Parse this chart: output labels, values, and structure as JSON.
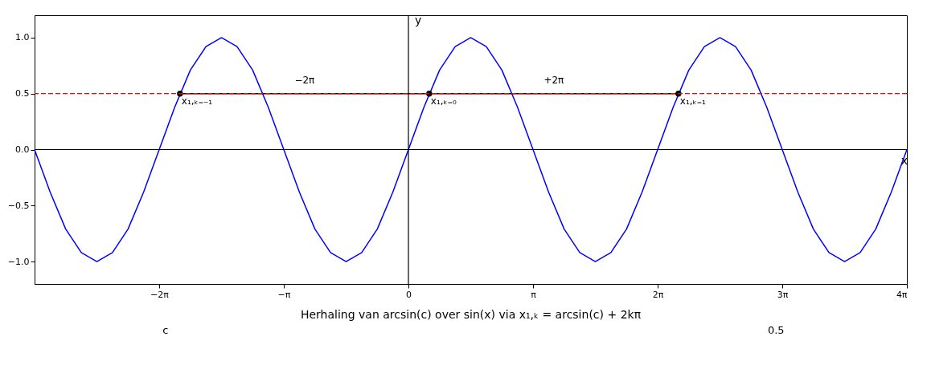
{
  "chart_data": [
    {
      "type": "line",
      "title": "Herhaling van arcsin(c) over sin(x) via x₁,ₖ = arcsin(c) + 2kπ",
      "xlabel": "x",
      "ylabel": "y",
      "xlim": [
        -9.4248,
        12.5664
      ],
      "ylim": [
        -1.2,
        1.2
      ],
      "xticks": [
        {
          "value": -6.2832,
          "label": "−2π"
        },
        {
          "value": -3.1416,
          "label": "−π"
        },
        0,
        {
          "value": 3.1416,
          "label": "π"
        },
        {
          "value": 6.2832,
          "label": "2π"
        },
        {
          "value": 9.4248,
          "label": "3π"
        },
        {
          "value": 12.5664,
          "label": "4π"
        }
      ],
      "yticks": [
        {
          "value": -1.0,
          "label": "−1.0"
        },
        {
          "value": -0.5,
          "label": "−0.5"
        },
        {
          "value": 0.0,
          "label": "0.0"
        },
        {
          "value": 0.5,
          "label": "0.5"
        },
        {
          "value": 1.0,
          "label": "1.0"
        }
      ],
      "grid": false,
      "series": [
        {
          "color": "#0000ff",
          "line_style": "solid",
          "x": [
            -9.4248,
            -9.0321,
            -8.6394,
            -8.2467,
            -7.854,
            -7.4613,
            -7.0686,
            -6.6759,
            -6.2832,
            -5.8905,
            -5.4978,
            -5.1051,
            -4.7124,
            -4.3197,
            -3.927,
            -3.5343,
            -3.1416,
            -2.7489,
            -2.3562,
            -1.9635,
            -1.5708,
            -1.1781,
            -0.7854,
            -0.3927,
            0,
            0.3927,
            0.7854,
            1.1781,
            1.5708,
            1.9635,
            2.3562,
            2.7489,
            3.1416,
            3.5343,
            3.927,
            4.3197,
            4.7124,
            5.1051,
            5.4978,
            5.8905,
            6.2832,
            6.6759,
            7.0686,
            7.4613,
            7.854,
            8.2467,
            8.6394,
            9.0321,
            9.4248,
            9.8175,
            10.2102,
            10.6029,
            10.9956,
            11.3883,
            11.781,
            12.1737,
            12.5664
          ],
          "values": [
            0,
            -0.38,
            -0.71,
            -0.92,
            -1,
            -0.92,
            -0.71,
            -0.38,
            0,
            0.38,
            0.71,
            0.92,
            1,
            0.92,
            0.71,
            0.38,
            0,
            -0.38,
            -0.71,
            -0.92,
            -1,
            -0.92,
            -0.71,
            -0.38,
            0,
            0.38,
            0.71,
            0.92,
            1,
            0.92,
            0.71,
            0.38,
            0,
            -0.38,
            -0.71,
            -0.92,
            -1,
            -0.92,
            -0.71,
            -0.38,
            0,
            0.38,
            0.71,
            0.92,
            1,
            0.92,
            0.71,
            0.38,
            0,
            -0.38,
            -0.71,
            -0.92,
            -1,
            -0.92,
            -0.71,
            -0.38,
            0
          ]
        },
        {
          "color": "#000000",
          "line_style": "solid",
          "x": [
            0.5236,
            6.8068
          ],
          "values": [
            0.5,
            0.5
          ]
        },
        {
          "color": "#000000",
          "line_style": "solid",
          "x": [
            0.5236,
            -5.7596
          ],
          "values": [
            0.5,
            0.5
          ]
        },
        {
          "type": "scatter",
          "color": "#000000",
          "marker": "circle",
          "x": [
            -5.7596,
            0.5236,
            6.8068
          ],
          "values": [
            0.5,
            0.5,
            0.5
          ]
        }
      ],
      "ref_lines": [
        {
          "axis": "y",
          "value": 0.5,
          "color": "#ff0000",
          "line_style": "dashed"
        },
        {
          "axis": "x",
          "value": 0,
          "color": "#000000",
          "line_style": "solid"
        },
        {
          "axis": "y",
          "value": 0,
          "color": "#000000",
          "line_style": "solid"
        }
      ],
      "annotations": [
        {
          "text": "x₁,ₖ₌₋₁",
          "x": -5.7596,
          "y": 0.5
        },
        {
          "text": "x₁,ₖ₌₀",
          "x": 0.5236,
          "y": 0.5
        },
        {
          "text": "x₁,ₖ₌₁",
          "x": 6.8068,
          "y": 0.5
        },
        "+2π",
        "−2π"
      ]
    },
    {
      "type": "other",
      "annotations": [
        "c",
        "0.5"
      ]
    }
  ]
}
